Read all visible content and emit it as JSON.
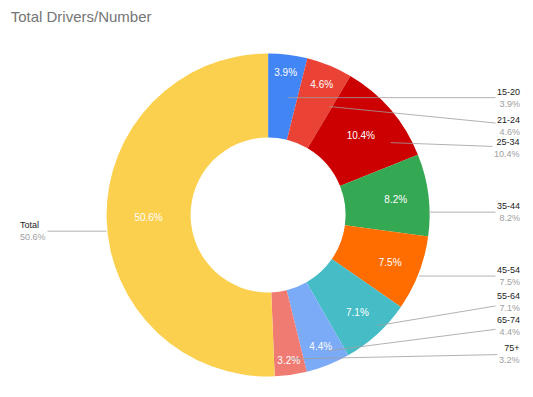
{
  "chart_data": {
    "type": "pie",
    "title": "Total Drivers/Number",
    "categories": [
      "15-20",
      "21-24",
      "25-34",
      "35-44",
      "45-54",
      "55-64",
      "65-74",
      "75+",
      "Total"
    ],
    "values": [
      3.9,
      4.6,
      10.4,
      8.2,
      7.5,
      7.1,
      4.4,
      3.2,
      50.6
    ],
    "value_labels": [
      "3.9%",
      "4.6%",
      "10.4%",
      "8.2%",
      "7.5%",
      "7.1%",
      "4.4%",
      "3.2%",
      "50.6%"
    ],
    "colors": [
      "#4285f4",
      "#ea4335",
      "#cc0000",
      "#34a853",
      "#ff6d01",
      "#46bdc6",
      "#7baaf7",
      "#f07b72",
      "#fcd04f"
    ],
    "data_labels": true
  }
}
